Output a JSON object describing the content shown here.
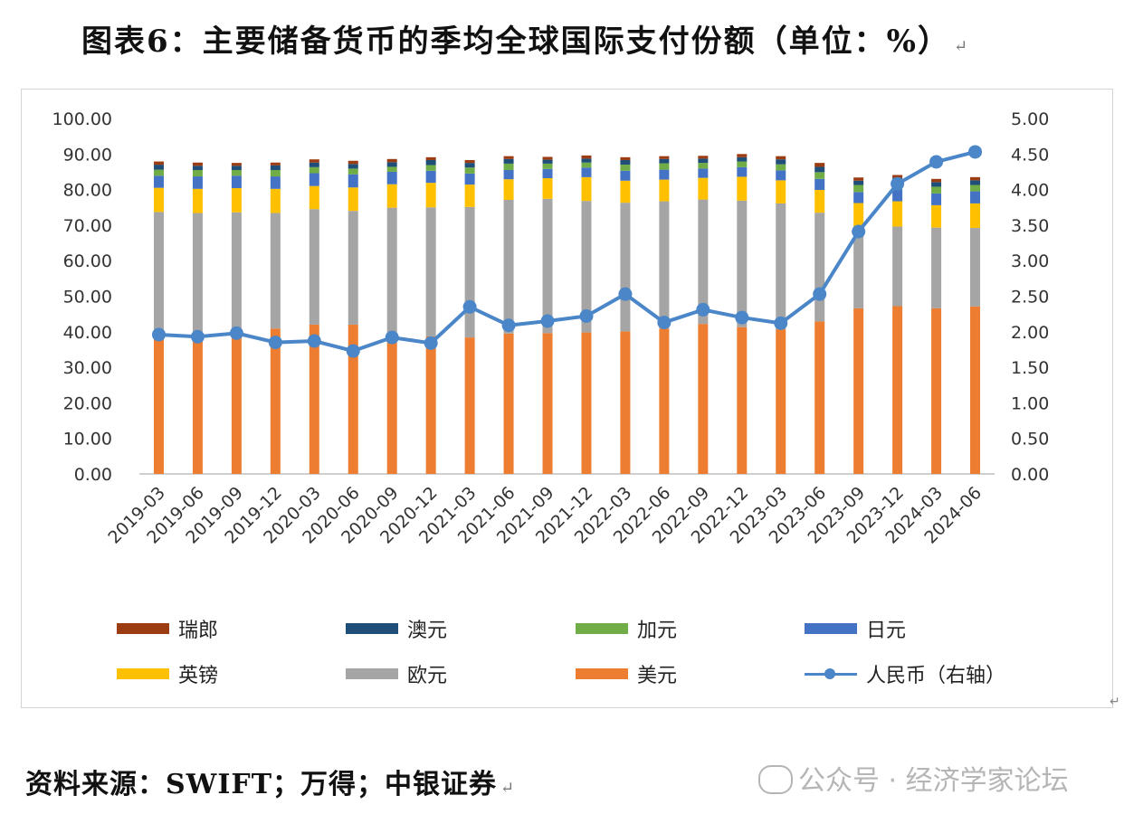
{
  "title": "图表6：主要储备货币的季均全球国际支付份额（单位：%）",
  "source": "资料来源：SWIFT；万得；中银证券",
  "watermark": "公众号 · 经济学家论坛",
  "colors": {
    "瑞郎": "#9b3c12",
    "澳元": "#1f4e79",
    "加元": "#70ad47",
    "日元": "#4472c4",
    "英镑": "#ffc000",
    "欧元": "#a5a5a5",
    "美元": "#ed7d31",
    "人民币": "#4a86c8"
  },
  "chart_data": {
    "type": "bar",
    "stacked": true,
    "categories": [
      "2019-03",
      "2019-06",
      "2019-09",
      "2019-12",
      "2020-03",
      "2020-06",
      "2020-09",
      "2020-12",
      "2021-03",
      "2021-06",
      "2021-09",
      "2021-12",
      "2022-03",
      "2022-06",
      "2022-09",
      "2022-12",
      "2023-03",
      "2023-06",
      "2023-09",
      "2023-12",
      "2024-03",
      "2024-06"
    ],
    "left_axis": {
      "ylim": [
        0,
        100
      ],
      "ticks": [
        "0.00",
        "10.00",
        "20.00",
        "30.00",
        "40.00",
        "50.00",
        "60.00",
        "70.00",
        "80.00",
        "90.00",
        "100.00"
      ]
    },
    "right_axis": {
      "ylim": [
        0,
        5
      ],
      "ticks": [
        "0.00",
        "0.50",
        "1.00",
        "1.50",
        "2.00",
        "2.50",
        "3.00",
        "3.50",
        "4.00",
        "4.50",
        "5.00"
      ]
    },
    "series": [
      {
        "name": "美元",
        "values": [
          40.1,
          40.0,
          40.2,
          40.9,
          42.0,
          42.0,
          37.6,
          38.7,
          38.4,
          39.5,
          39.6,
          39.8,
          40.1,
          40.9,
          42.2,
          41.3,
          40.7,
          42.9,
          46.6,
          47.2,
          46.6,
          47.1
        ]
      },
      {
        "name": "欧元",
        "values": [
          33.6,
          33.4,
          33.4,
          32.5,
          32.5,
          32.0,
          37.3,
          36.3,
          36.7,
          37.6,
          37.8,
          37.0,
          36.2,
          35.8,
          35.0,
          35.6,
          35.4,
          30.6,
          22.8,
          22.4,
          22.7,
          22.1
        ]
      },
      {
        "name": "英镑",
        "values": [
          6.8,
          6.8,
          6.8,
          6.8,
          6.5,
          6.6,
          6.6,
          6.9,
          6.3,
          5.8,
          5.8,
          6.7,
          6.2,
          6.1,
          6.1,
          6.7,
          6.5,
          6.4,
          6.8,
          7.1,
          6.3,
          6.9
        ]
      },
      {
        "name": "日元",
        "values": [
          3.4,
          3.5,
          3.5,
          3.5,
          3.6,
          3.7,
          3.5,
          3.4,
          3.1,
          2.6,
          2.6,
          2.7,
          2.8,
          2.8,
          2.6,
          2.7,
          2.8,
          3.1,
          3.1,
          3.4,
          3.3,
          3.4
        ]
      },
      {
        "name": "加元",
        "values": [
          1.7,
          1.8,
          1.6,
          1.8,
          1.7,
          1.6,
          1.4,
          1.6,
          1.7,
          1.8,
          1.5,
          1.4,
          1.7,
          1.8,
          1.6,
          1.6,
          1.7,
          1.9,
          2.0,
          2.0,
          1.9,
          1.8
        ]
      },
      {
        "name": "澳元",
        "values": [
          1.4,
          1.2,
          1.2,
          1.3,
          1.3,
          1.3,
          1.3,
          1.4,
          1.3,
          1.3,
          1.1,
          1.1,
          1.3,
          1.2,
          1.2,
          1.2,
          1.4,
          1.5,
          1.2,
          1.2,
          1.3,
          1.3
        ]
      },
      {
        "name": "瑞郎",
        "values": [
          0.9,
          0.9,
          0.8,
          0.8,
          0.9,
          0.9,
          0.9,
          0.8,
          0.8,
          0.8,
          0.8,
          0.9,
          0.8,
          0.8,
          0.8,
          0.9,
          0.9,
          1.1,
          0.9,
          0.8,
          0.9,
          0.9
        ]
      }
    ],
    "line_series": {
      "name": "人民币（右轴）",
      "axis": "right",
      "values": [
        1.96,
        1.93,
        1.98,
        1.85,
        1.87,
        1.73,
        1.92,
        1.84,
        2.35,
        2.09,
        2.15,
        2.22,
        2.53,
        2.13,
        2.31,
        2.2,
        2.12,
        2.53,
        3.41,
        4.08,
        4.39,
        4.53
      ]
    },
    "legend": {
      "position": "bottom",
      "entries": [
        "瑞郎",
        "澳元",
        "加元",
        "日元",
        "英镑",
        "欧元",
        "美元",
        "人民币（右轴）"
      ]
    },
    "grid": false
  }
}
